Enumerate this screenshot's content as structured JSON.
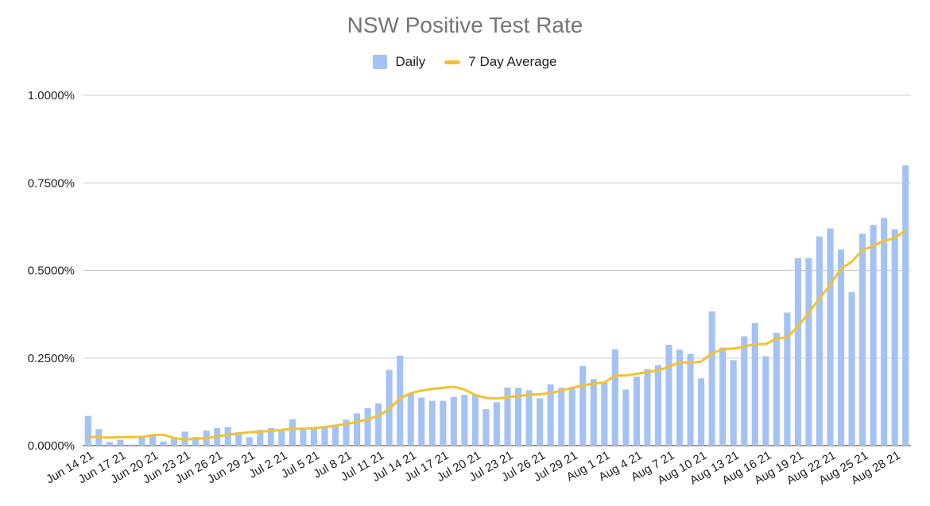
{
  "chart_data": {
    "type": "bar",
    "title": "NSW Positive Test Rate",
    "legend": {
      "position": "top",
      "entries": [
        "Daily",
        "7 Day Average"
      ]
    },
    "colors": {
      "bar": "#a4c2f4",
      "line": "#f1c232",
      "grid": "#cccccc"
    },
    "ylim": [
      0,
      1.0
    ],
    "yticks": [
      "0.0000%",
      "0.2500%",
      "0.5000%",
      "0.7500%",
      "1.0000%"
    ],
    "xtick_labels": [
      "Jun 14 21",
      "Jun 17 21",
      "Jun 20 21",
      "Jun 23 21",
      "Jun 26 21",
      "Jun 29 21",
      "Jul 2 21",
      "Jul 5 21",
      "Jul 8 21",
      "Jul 11 21",
      "Jul 14 21",
      "Jul 17 21",
      "Jul 20 21",
      "Jul 23 21",
      "Jul 26 21",
      "Jul 29 21",
      "Aug 1 21",
      "Aug 4 21",
      "Aug 7 21",
      "Aug 10 21",
      "Aug 13 21",
      "Aug 16 21",
      "Aug 19 21",
      "Aug 22 21",
      "Aug 25 21",
      "Aug 28 21"
    ],
    "series": [
      {
        "name": "Daily",
        "type": "bar",
        "values": [
          0.085,
          0.047,
          0.01,
          0.017,
          0.003,
          0.025,
          0.027,
          0.012,
          0.02,
          0.04,
          0.025,
          0.043,
          0.05,
          0.053,
          0.039,
          0.024,
          0.045,
          0.05,
          0.042,
          0.075,
          0.051,
          0.048,
          0.052,
          0.056,
          0.074,
          0.092,
          0.107,
          0.121,
          0.216,
          0.257,
          0.15,
          0.137,
          0.128,
          0.128,
          0.139,
          0.145,
          0.145,
          0.104,
          0.124,
          0.166,
          0.165,
          0.158,
          0.135,
          0.175,
          0.165,
          0.165,
          0.227,
          0.19,
          0.18,
          0.275,
          0.16,
          0.197,
          0.218,
          0.23,
          0.288,
          0.274,
          0.262,
          0.192,
          0.383,
          0.28,
          0.244,
          0.312,
          0.35,
          0.255,
          0.322,
          0.38,
          0.535,
          0.535,
          0.597,
          0.62,
          0.56,
          0.438,
          0.605,
          0.63,
          0.65,
          0.617,
          0.8
        ]
      },
      {
        "name": "7 Day Average",
        "type": "line",
        "values": [
          0.025,
          0.024,
          0.023,
          0.024,
          0.024,
          0.025,
          0.03,
          0.031,
          0.022,
          0.017,
          0.02,
          0.021,
          0.026,
          0.031,
          0.035,
          0.038,
          0.04,
          0.042,
          0.045,
          0.048,
          0.048,
          0.05,
          0.053,
          0.057,
          0.062,
          0.068,
          0.075,
          0.085,
          0.105,
          0.135,
          0.15,
          0.157,
          0.162,
          0.165,
          0.168,
          0.16,
          0.145,
          0.136,
          0.135,
          0.138,
          0.142,
          0.145,
          0.147,
          0.15,
          0.157,
          0.165,
          0.172,
          0.177,
          0.18,
          0.2,
          0.2,
          0.205,
          0.21,
          0.215,
          0.225,
          0.238,
          0.237,
          0.24,
          0.263,
          0.275,
          0.277,
          0.282,
          0.29,
          0.29,
          0.305,
          0.31,
          0.34,
          0.38,
          0.42,
          0.46,
          0.505,
          0.525,
          0.558,
          0.57,
          0.585,
          0.592,
          0.615
        ]
      }
    ]
  }
}
